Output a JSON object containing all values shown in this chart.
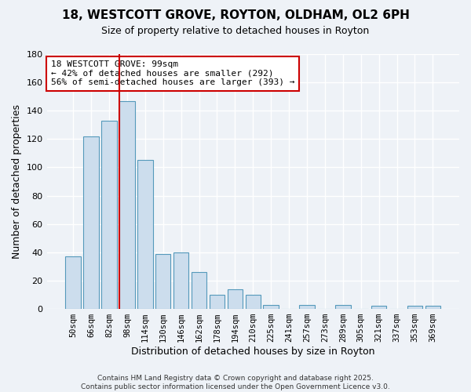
{
  "title": "18, WESTCOTT GROVE, ROYTON, OLDHAM, OL2 6PH",
  "subtitle": "Size of property relative to detached houses in Royton",
  "xlabel": "Distribution of detached houses by size in Royton",
  "ylabel": "Number of detached properties",
  "bar_color": "#ccdded",
  "bar_edge_color": "#5599bb",
  "background_color": "#eef2f7",
  "grid_color": "#ffffff",
  "categories": [
    "50sqm",
    "66sqm",
    "82sqm",
    "98sqm",
    "114sqm",
    "130sqm",
    "146sqm",
    "162sqm",
    "178sqm",
    "194sqm",
    "210sqm",
    "225sqm",
    "241sqm",
    "257sqm",
    "273sqm",
    "289sqm",
    "305sqm",
    "321sqm",
    "337sqm",
    "353sqm",
    "369sqm"
  ],
  "values": [
    37,
    122,
    133,
    147,
    105,
    39,
    40,
    26,
    10,
    14,
    10,
    3,
    0,
    3,
    0,
    3,
    0,
    2,
    0,
    2,
    2
  ],
  "ylim": [
    0,
    180
  ],
  "yticks": [
    0,
    20,
    40,
    60,
    80,
    100,
    120,
    140,
    160,
    180
  ],
  "vline_index": 3,
  "vline_color": "#cc0000",
  "annotation_title": "18 WESTCOTT GROVE: 99sqm",
  "annotation_line1": "← 42% of detached houses are smaller (292)",
  "annotation_line2": "56% of semi-detached houses are larger (393) →",
  "annotation_box_color": "#ffffff",
  "annotation_box_edge_color": "#cc0000",
  "footer1": "Contains HM Land Registry data © Crown copyright and database right 2025.",
  "footer2": "Contains public sector information licensed under the Open Government Licence v3.0."
}
